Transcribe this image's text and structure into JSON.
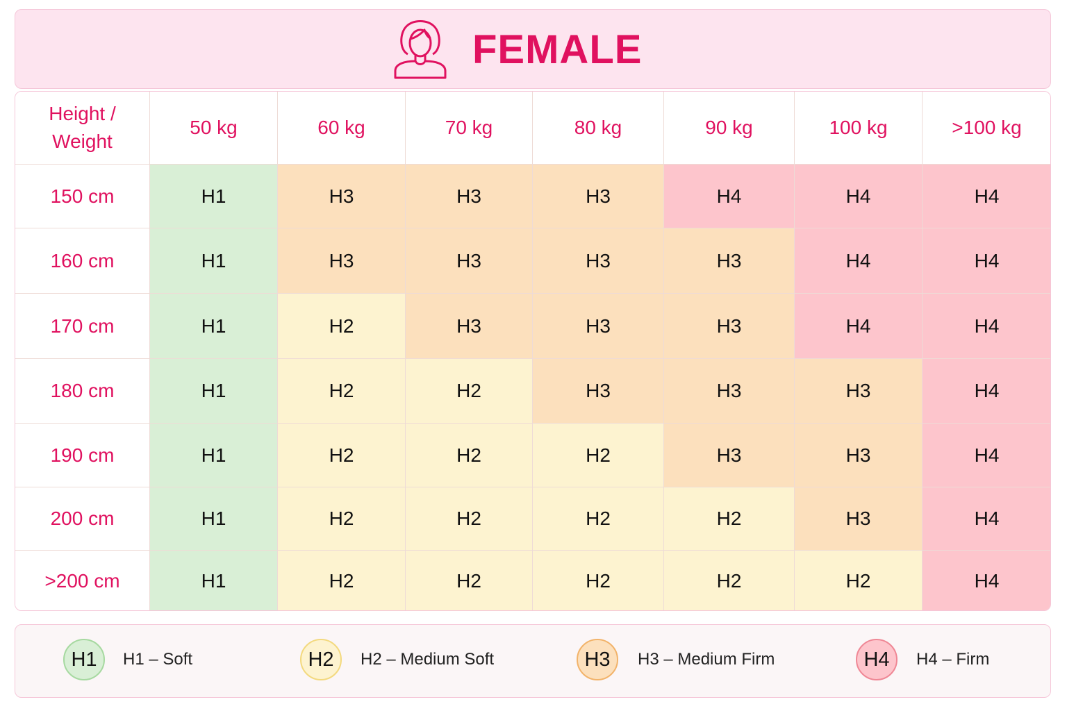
{
  "header": {
    "title": "FEMALE"
  },
  "table": {
    "corner": "Height / Weight",
    "columns": [
      "50 kg",
      "60 kg",
      "70 kg",
      "80 kg",
      "90 kg",
      "100 kg",
      ">100 kg"
    ],
    "rows": [
      {
        "label": "150 cm",
        "cells": [
          "H1",
          "H3",
          "H3",
          "H3",
          "H4",
          "H4",
          "H4"
        ]
      },
      {
        "label": "160 cm",
        "cells": [
          "H1",
          "H3",
          "H3",
          "H3",
          "H3",
          "H4",
          "H4"
        ]
      },
      {
        "label": "170 cm",
        "cells": [
          "H1",
          "H2",
          "H3",
          "H3",
          "H3",
          "H4",
          "H4"
        ]
      },
      {
        "label": "180 cm",
        "cells": [
          "H1",
          "H2",
          "H2",
          "H3",
          "H3",
          "H3",
          "H4"
        ]
      },
      {
        "label": "190 cm",
        "cells": [
          "H1",
          "H2",
          "H2",
          "H2",
          "H3",
          "H3",
          "H4"
        ]
      },
      {
        "label": "200 cm",
        "cells": [
          "H1",
          "H2",
          "H2",
          "H2",
          "H2",
          "H3",
          "H4"
        ]
      },
      {
        "label": ">200 cm",
        "cells": [
          "H1",
          "H2",
          "H2",
          "H2",
          "H2",
          "H2",
          "H4"
        ]
      }
    ]
  },
  "legend": [
    {
      "badge": "H1",
      "label": "H1 – Soft",
      "color": "#d9efd6",
      "border": "#a6d9a0"
    },
    {
      "badge": "H2",
      "label": "H2 – Medium Soft",
      "color": "#fdf3d0",
      "border": "#f3d97e"
    },
    {
      "badge": "H3",
      "label": "H3 – Medium Firm",
      "color": "#fce0bd",
      "border": "#f2b36a"
    },
    {
      "badge": "H4",
      "label": "H4 – Firm",
      "color": "#fdc5cc",
      "border": "#ef8795"
    }
  ]
}
